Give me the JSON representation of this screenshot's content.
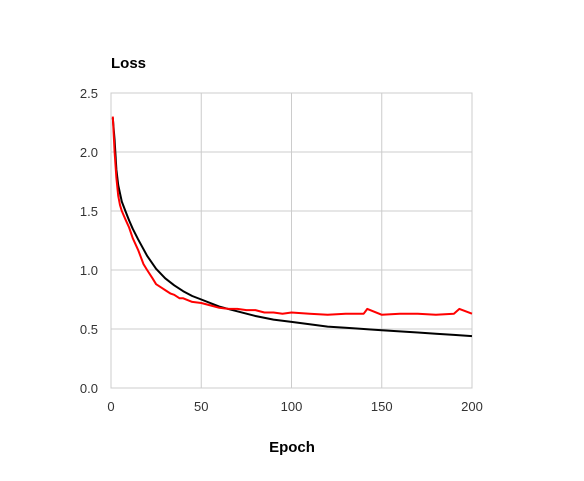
{
  "chart_data": {
    "type": "line",
    "title": "Loss",
    "xlabel": "Epoch",
    "ylabel": "",
    "xlim": [
      0,
      200
    ],
    "ylim": [
      0,
      2.5
    ],
    "xticks": [
      "0",
      "50",
      "100",
      "150",
      "200"
    ],
    "yticks": [
      "0.0",
      "0.5",
      "1.0",
      "1.5",
      "2.0",
      "2.5"
    ],
    "grid": true,
    "legend": "none",
    "series": [
      {
        "color": "#000000",
        "x": [
          1,
          2,
          3,
          4,
          5,
          6,
          8,
          10,
          12,
          15,
          20,
          25,
          30,
          35,
          40,
          45,
          50,
          60,
          70,
          80,
          90,
          100,
          110,
          120,
          130,
          140,
          150,
          160,
          170,
          180,
          190,
          200
        ],
        "y": [
          2.29,
          2.1,
          1.85,
          1.72,
          1.65,
          1.58,
          1.5,
          1.42,
          1.35,
          1.26,
          1.12,
          1.01,
          0.93,
          0.87,
          0.82,
          0.78,
          0.75,
          0.69,
          0.65,
          0.61,
          0.58,
          0.56,
          0.54,
          0.52,
          0.51,
          0.5,
          0.49,
          0.48,
          0.47,
          0.46,
          0.45,
          0.44
        ]
      },
      {
        "color": "#ff0000",
        "x": [
          1,
          2,
          3,
          4,
          5,
          6,
          8,
          10,
          12,
          15,
          18,
          20,
          23,
          25,
          28,
          30,
          33,
          35,
          38,
          40,
          45,
          50,
          55,
          60,
          65,
          70,
          75,
          80,
          85,
          90,
          95,
          100,
          110,
          120,
          130,
          140,
          142,
          150,
          160,
          170,
          180,
          190,
          193,
          200
        ],
        "y": [
          2.3,
          2.0,
          1.78,
          1.63,
          1.55,
          1.5,
          1.43,
          1.36,
          1.27,
          1.17,
          1.05,
          1.0,
          0.93,
          0.88,
          0.85,
          0.83,
          0.8,
          0.79,
          0.76,
          0.76,
          0.73,
          0.72,
          0.7,
          0.68,
          0.67,
          0.67,
          0.66,
          0.66,
          0.64,
          0.64,
          0.63,
          0.64,
          0.63,
          0.62,
          0.63,
          0.63,
          0.67,
          0.62,
          0.63,
          0.63,
          0.62,
          0.63,
          0.67,
          0.63
        ]
      }
    ]
  }
}
